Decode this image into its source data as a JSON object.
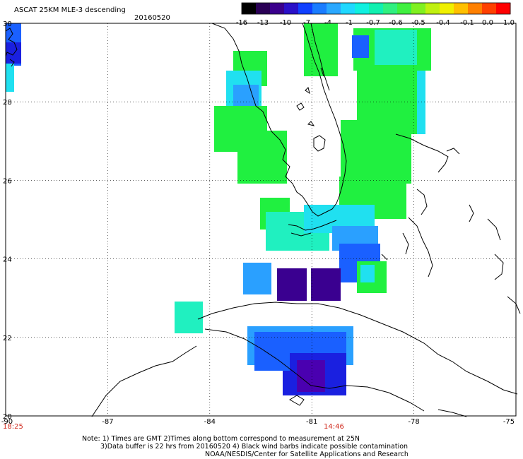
{
  "title": "ASCAT 25KM MLE-3 descending",
  "date": "20160520",
  "colorbar": {
    "colors": [
      "#000000",
      "#2a0055",
      "#3a008c",
      "#2a10c8",
      "#1040ff",
      "#1a7cff",
      "#2aa8ff",
      "#20d8ff",
      "#10f0e0",
      "#10f0b0",
      "#30f080",
      "#40f040",
      "#80f020",
      "#c0f010",
      "#f0f000",
      "#ffc000",
      "#ff8000",
      "#ff4000",
      "#ff0000"
    ],
    "tick_labels": [
      "-16",
      "-13",
      "-10",
      "-7",
      "-4",
      "-1",
      "-0.7",
      "-0.6",
      "-0.5",
      "-0.4",
      "-0.1",
      "0.0",
      "1.0"
    ]
  },
  "axes": {
    "lat_labels": [
      "30",
      "28",
      "26",
      "24",
      "22",
      "20"
    ],
    "lon_labels": [
      "-90",
      "-87",
      "-84",
      "-81",
      "-78",
      "-75"
    ],
    "lat_range": [
      20,
      30
    ],
    "lon_range": [
      -90,
      -75
    ],
    "grid": "dotted"
  },
  "times": {
    "left": "18:25",
    "right": "14:46",
    "color": "#d0281c"
  },
  "notes": {
    "line1": "Note: 1) Times are GMT 2)Times along bottom correspond to measurement at 25N",
    "line2": "3)Data buffer is 22 hrs from 20160520 4) Black wind barbs indicate possible contamination",
    "line3": "NOAA/NESDIS/Center for Satellite Applications and Research"
  },
  "swath_colors": {
    "green": "#20f040",
    "green_light": "#60f060",
    "cyan": "#20e0f0",
    "aqua": "#20f0c0",
    "blue_light": "#2aa0ff",
    "blue": "#1a60ff",
    "blue_dark": "#1a20e0",
    "violet": "#4a00b0",
    "purple": "#3a0090"
  }
}
